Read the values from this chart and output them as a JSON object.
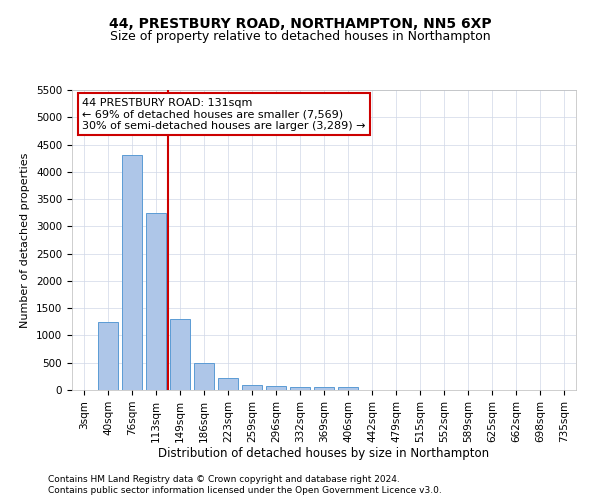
{
  "title1": "44, PRESTBURY ROAD, NORTHAMPTON, NN5 6XP",
  "title2": "Size of property relative to detached houses in Northampton",
  "xlabel": "Distribution of detached houses by size in Northampton",
  "ylabel": "Number of detached properties",
  "categories": [
    "3sqm",
    "40sqm",
    "76sqm",
    "113sqm",
    "149sqm",
    "186sqm",
    "223sqm",
    "259sqm",
    "296sqm",
    "332sqm",
    "369sqm",
    "406sqm",
    "442sqm",
    "479sqm",
    "515sqm",
    "552sqm",
    "589sqm",
    "625sqm",
    "662sqm",
    "698sqm",
    "735sqm"
  ],
  "values": [
    0,
    1250,
    4300,
    3250,
    1300,
    500,
    225,
    100,
    75,
    50,
    50,
    50,
    0,
    0,
    0,
    0,
    0,
    0,
    0,
    0,
    0
  ],
  "bar_color": "#aec6e8",
  "bar_edge_color": "#5b9bd5",
  "vline_color": "#cc0000",
  "annotation_text": "44 PRESTBURY ROAD: 131sqm\n← 69% of detached houses are smaller (7,569)\n30% of semi-detached houses are larger (3,289) →",
  "annotation_box_color": "#ffffff",
  "annotation_box_edge_color": "#cc0000",
  "ylim": [
    0,
    5500
  ],
  "yticks": [
    0,
    500,
    1000,
    1500,
    2000,
    2500,
    3000,
    3500,
    4000,
    4500,
    5000,
    5500
  ],
  "footer1": "Contains HM Land Registry data © Crown copyright and database right 2024.",
  "footer2": "Contains public sector information licensed under the Open Government Licence v3.0.",
  "bg_color": "#ffffff",
  "grid_color": "#d0d8e8",
  "title1_fontsize": 10,
  "title2_fontsize": 9,
  "xlabel_fontsize": 8.5,
  "ylabel_fontsize": 8,
  "tick_fontsize": 7.5,
  "annotation_fontsize": 8,
  "footer_fontsize": 6.5
}
